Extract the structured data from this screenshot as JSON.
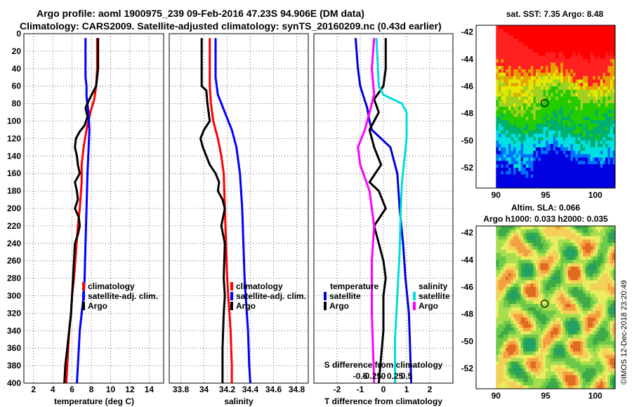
{
  "title": {
    "line1": "Argo profile: aoml 1900975_239 09-Feb-2016 47.23S 94.906E (DM data)",
    "line2": "Climatology: CARS2009. Satellite-adjusted climatology: synTS_20160209.nc (0.43d earlier)"
  },
  "colors": {
    "argo": "#000000",
    "climatology": "#ff0000",
    "satellite_adj": "#0000ff",
    "t_satellite": "#0000dd",
    "s_satellite": "#00dddd",
    "s_argo": "#ff00ff"
  },
  "chart_data": [
    {
      "id": "temperature",
      "type": "line",
      "xlabel": "temperature (deg C)",
      "ylabel": "",
      "xlim": [
        1,
        15.5
      ],
      "ylim": [
        400,
        0
      ],
      "xticks": [
        2,
        4,
        6,
        8,
        10,
        12,
        14
      ],
      "yticks": [
        0,
        20,
        40,
        60,
        80,
        100,
        120,
        140,
        160,
        180,
        200,
        220,
        240,
        260,
        280,
        300,
        320,
        340,
        360,
        380,
        400
      ],
      "legend": [
        "climatology",
        "satellite-adj. clim.",
        "Argo"
      ],
      "series": [
        {
          "name": "climatology",
          "color": "#ff0000",
          "x": [
            8.6,
            8.6,
            8.5,
            8.3,
            7.9,
            7.5,
            7.2,
            7.0,
            7.0,
            6.8,
            6.6,
            6.4,
            6.2,
            6.0,
            5.9,
            5.7,
            5.6,
            5.5,
            5.4
          ],
          "y": [
            5,
            40,
            60,
            75,
            90,
            110,
            130,
            150,
            170,
            200,
            220,
            250,
            280,
            300,
            320,
            340,
            360,
            380,
            400
          ]
        },
        {
          "name": "satellite-adj. clim.",
          "color": "#0000ff",
          "x": [
            7.4,
            7.4,
            7.5,
            7.5,
            7.7,
            7.8,
            7.6,
            7.5,
            7.4,
            7.3,
            7.2,
            7.0,
            6.8,
            6.6,
            6.5
          ],
          "y": [
            5,
            50,
            60,
            72,
            90,
            110,
            160,
            200,
            240,
            280,
            300,
            320,
            340,
            380,
            400
          ]
        },
        {
          "name": "Argo",
          "color": "#000000",
          "x": [
            8.7,
            8.7,
            8.5,
            7.8,
            7.4,
            7.6,
            7.3,
            6.8,
            6.4,
            6.3,
            6.5,
            6.6,
            6.8,
            6.3,
            6.5,
            6.6,
            6.3,
            6.7,
            6.8,
            6.6,
            6.3,
            6.2,
            6.1,
            6.0,
            5.9,
            5.7,
            5.5,
            5.3,
            5.2
          ],
          "y": [
            5,
            40,
            60,
            75,
            85,
            95,
            105,
            112,
            120,
            130,
            140,
            150,
            160,
            170,
            180,
            190,
            200,
            210,
            220,
            230,
            240,
            260,
            280,
            300,
            320,
            340,
            360,
            380,
            400
          ]
        }
      ]
    },
    {
      "id": "salinity",
      "type": "line",
      "xlabel": "salinity",
      "xlim": [
        33.7,
        34.9
      ],
      "ylim": [
        400,
        0
      ],
      "xticks": [
        33.8,
        34,
        34.2,
        34.4,
        34.6,
        34.8
      ],
      "legend": [
        "climatology",
        "satellite-adj. clim.",
        "Argo"
      ],
      "series": [
        {
          "name": "climatology",
          "color": "#ff0000",
          "x": [
            34.05,
            34.05,
            34.06,
            34.08,
            34.12,
            34.15,
            34.17,
            34.18,
            34.19,
            34.2,
            34.21,
            34.22,
            34.23,
            34.24,
            34.24
          ],
          "y": [
            5,
            60,
            80,
            100,
            120,
            140,
            160,
            200,
            240,
            280,
            300,
            320,
            340,
            380,
            400
          ]
        },
        {
          "name": "satellite-adj. clim.",
          "color": "#0000ff",
          "x": [
            34.1,
            34.1,
            34.12,
            34.18,
            34.24,
            34.28,
            34.31,
            34.33,
            34.34,
            34.35,
            34.36,
            34.37,
            34.38,
            34.39,
            34.4
          ],
          "y": [
            5,
            50,
            70,
            90,
            110,
            130,
            160,
            200,
            240,
            280,
            300,
            320,
            340,
            380,
            400
          ]
        },
        {
          "name": "Argo",
          "color": "#000000",
          "x": [
            33.98,
            33.98,
            34.02,
            34.03,
            34.05,
            34.0,
            33.97,
            33.99,
            34.05,
            34.1,
            34.13,
            34.12,
            34.16,
            34.18,
            34.15,
            34.18,
            34.17,
            34.18,
            34.17,
            34.16,
            34.16
          ],
          "y": [
            5,
            60,
            65,
            80,
            100,
            110,
            120,
            130,
            150,
            160,
            170,
            180,
            190,
            200,
            220,
            240,
            280,
            300,
            320,
            360,
            400
          ]
        }
      ]
    },
    {
      "id": "difference",
      "type": "line",
      "xlabel": "T difference from climatology",
      "x2label": "S difference from climatology",
      "xlim": [
        -3,
        3
      ],
      "ylim": [
        400,
        0
      ],
      "xticks": [
        -2,
        -1,
        0,
        1,
        2
      ],
      "s_xticks": [
        -0.5,
        -0.25,
        0,
        0.25,
        0.5
      ],
      "s_xtick_labels": [
        "-0.5",
        "-0.25",
        "0",
        "0.25",
        "0.5"
      ],
      "legend_t": {
        "heading": "temperature",
        "items": [
          "satellite",
          "Argo"
        ]
      },
      "legend_s": {
        "heading": "salinity",
        "items": [
          "satellite",
          "Argo"
        ]
      },
      "series": [
        {
          "name": "T satellite",
          "color": "#0000dd",
          "x": [
            -1.2,
            -1.1,
            -1.0,
            -0.7,
            -0.6,
            -0.5,
            0.3,
            0.6,
            0.7,
            0.85,
            0.95,
            1.1,
            1.15,
            1.2
          ],
          "y": [
            5,
            40,
            60,
            85,
            100,
            110,
            130,
            160,
            200,
            240,
            280,
            320,
            360,
            400
          ]
        },
        {
          "name": "T Argo",
          "color": "#000000",
          "x": [
            0.1,
            0.1,
            0.0,
            -0.4,
            -0.2,
            -0.6,
            -0.4,
            -0.1,
            -0.6,
            -0.2,
            0.1,
            -0.4,
            -0.2,
            0.0,
            0.1,
            0.0,
            0.0,
            -0.2
          ],
          "y": [
            5,
            40,
            60,
            75,
            90,
            110,
            130,
            150,
            170,
            180,
            200,
            220,
            240,
            260,
            280,
            300,
            340,
            400
          ]
        },
        {
          "name": "S satellite",
          "color": "#00dddd",
          "x": [
            -0.3,
            -0.2,
            0.0,
            0.8,
            1.0,
            1.0,
            0.8,
            0.75,
            0.7,
            0.6,
            0.5,
            0.5
          ],
          "y": [
            5,
            60,
            70,
            80,
            90,
            120,
            170,
            200,
            250,
            300,
            350,
            400
          ]
        },
        {
          "name": "S Argo",
          "color": "#ff00ff",
          "x": [
            -0.4,
            -0.5,
            -0.4,
            -0.6,
            -0.8,
            -1.1,
            -1.0,
            -0.6,
            -0.4,
            -0.5,
            -0.5,
            -0.4
          ],
          "y": [
            5,
            40,
            70,
            90,
            110,
            130,
            150,
            180,
            220,
            260,
            320,
            400
          ]
        }
      ]
    },
    {
      "id": "sst-map",
      "type": "heatmap",
      "title": "sat. SST: 7.35 Argo: 8.48",
      "xlim": [
        88,
        102
      ],
      "ylim": [
        -53.5,
        -41.5
      ],
      "xticks": [
        90,
        95,
        100
      ],
      "yticks": [
        -42,
        -44,
        -46,
        -48,
        -50,
        -52
      ],
      "profile_marker": {
        "lon": 94.906,
        "lat": -47.23
      }
    },
    {
      "id": "sla-map",
      "type": "heatmap",
      "title": "Altim. SLA: 0.066",
      "subtitle": "Argo h1000: 0.033 h2000: 0.035",
      "xlim": [
        88,
        102
      ],
      "ylim": [
        -53.5,
        -41.5
      ],
      "xticks": [
        90,
        95,
        100
      ],
      "yticks": [
        -42,
        -44,
        -46,
        -48,
        -50,
        -52
      ],
      "profile_marker": {
        "lon": 94.906,
        "lat": -47.23
      }
    }
  ],
  "credit": "©IMOS 12-Dec-2018 23:20:49"
}
